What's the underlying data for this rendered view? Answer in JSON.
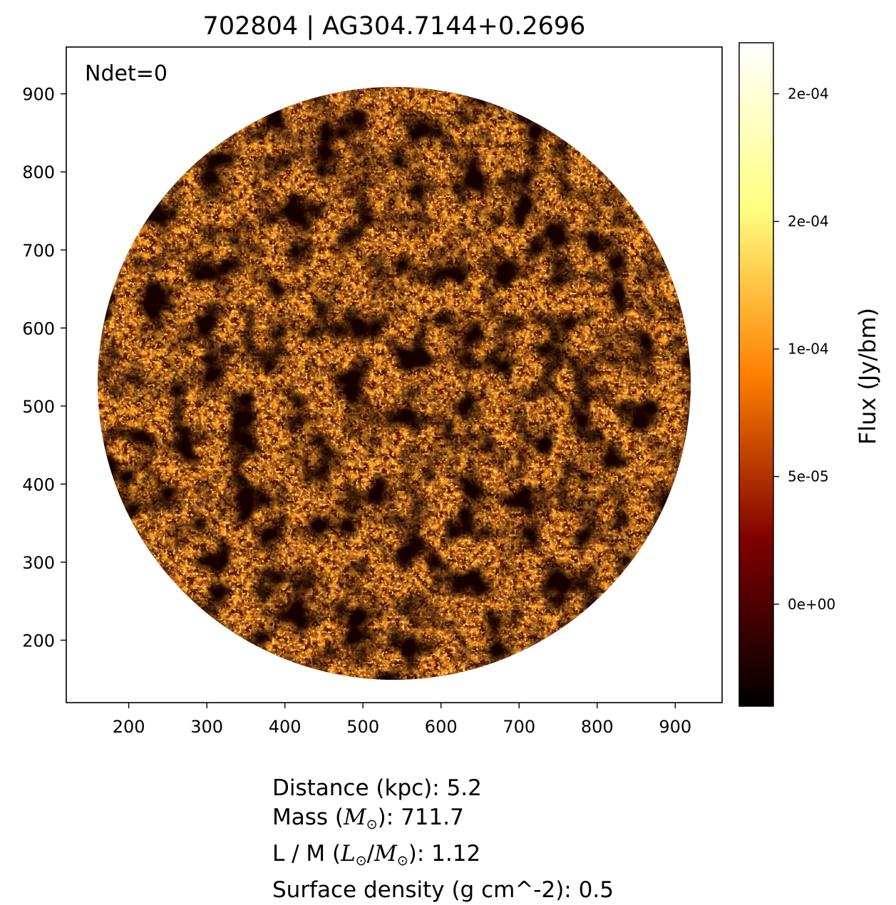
{
  "chart_data": {
    "type": "heatmap",
    "title": "702804 | AG304.7144+0.2696",
    "annotation": "Ndet=0",
    "xlim": [
      120,
      960
    ],
    "ylim": [
      120,
      960
    ],
    "x_ticks": [
      200,
      300,
      400,
      500,
      600,
      700,
      800,
      900
    ],
    "y_ticks": [
      200,
      300,
      400,
      500,
      600,
      700,
      800,
      900
    ],
    "x_tick_labels": [
      "200",
      "300",
      "400",
      "500",
      "600",
      "700",
      "800",
      "900"
    ],
    "y_tick_labels": [
      "200",
      "300",
      "400",
      "500",
      "600",
      "700",
      "800",
      "900"
    ],
    "image": {
      "shape": "circular aperture",
      "center": [
        553,
        538
      ],
      "radius": 415,
      "description": "noise-dominated flux map"
    },
    "colorbar": {
      "label": "Flux (Jy/bm)",
      "colormap": "afmhot",
      "range": [
        -4e-05,
        0.00022
      ],
      "ticks": [
        0.0,
        5e-05,
        0.0001,
        0.00015,
        0.0002
      ],
      "tick_labels": [
        "0e+00",
        "5e-05",
        "1e-04",
        "2e-04",
        "2e-04"
      ]
    }
  },
  "info": {
    "distance_prefix": "Distance (kpc): ",
    "distance_value": "5.2",
    "mass_prefix": "Mass (",
    "mass_symbol": "M",
    "mass_suffix": "): ",
    "mass_value": "711.7",
    "lm_prefix": "L / M (",
    "lm_symbol_l": "L",
    "lm_symbol_m": "M",
    "lm_suffix": "): ",
    "lm_value": "1.12",
    "surface_density_prefix": "Surface density (g cm^-2): ",
    "surface_density_value": "0.5",
    "sun_symbol": "⊙"
  },
  "colors": {
    "cmap_stops": [
      "#000000",
      "#7f0000",
      "#ff8000",
      "#ffff80",
      "#ffffff"
    ]
  }
}
